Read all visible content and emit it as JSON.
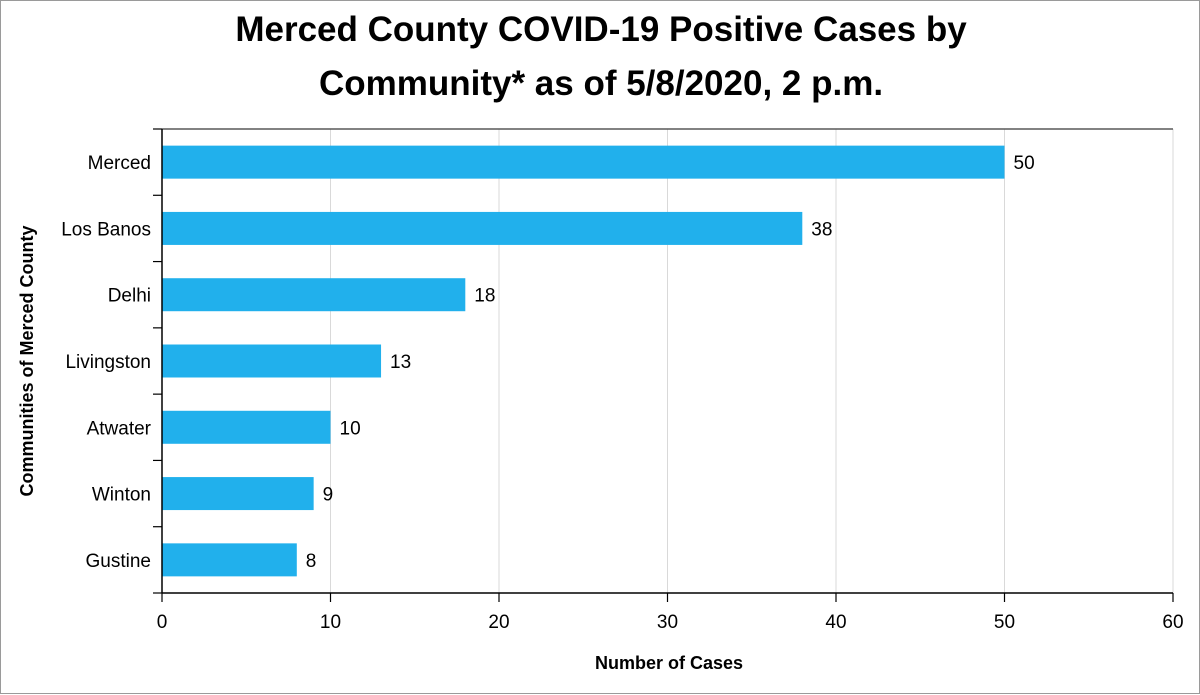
{
  "chart_data": {
    "type": "bar",
    "orientation": "horizontal",
    "title": [
      "Merced County COVID-19 Positive Cases by",
      "Community* as of 5/8/2020, 2 p.m."
    ],
    "xlabel": "Number of Cases",
    "ylabel": "Communities of Merced County",
    "categories": [
      "Merced",
      "Los Banos",
      "Delhi",
      "Livingston",
      "Atwater",
      "Winton",
      "Gustine"
    ],
    "values": [
      50,
      38,
      18,
      13,
      10,
      9,
      8
    ],
    "xlim": [
      0,
      60
    ],
    "xticks": [
      0,
      10,
      20,
      30,
      40,
      50,
      60
    ],
    "grid": true,
    "legend": "none",
    "bar_color": "#21b0ec",
    "grid_color": "#d9d9d9",
    "axis_color": "#000000"
  }
}
